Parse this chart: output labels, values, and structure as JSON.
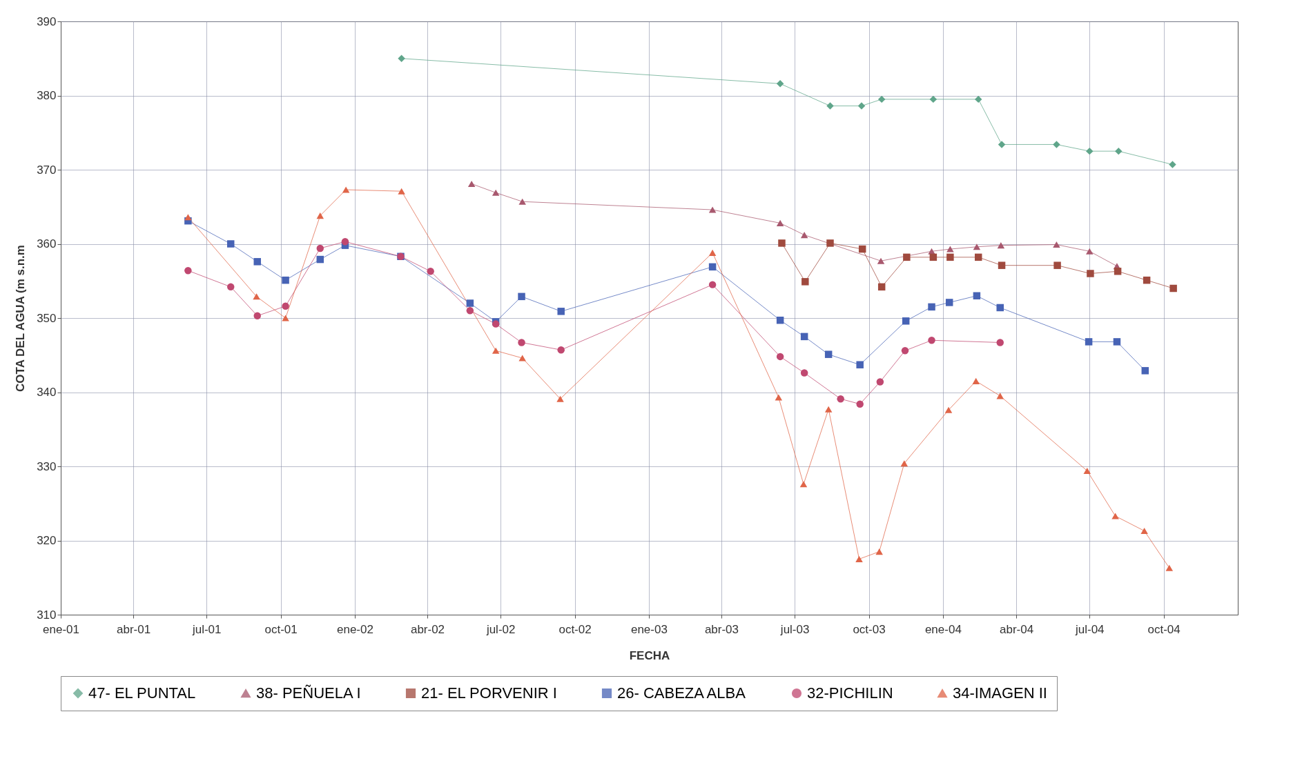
{
  "chart_data": {
    "type": "line",
    "xlabel": "FECHA",
    "ylabel": "COTA DEL AGUA (m s.n.m",
    "xlim": [
      "2001-01-01",
      "2005-01-01"
    ],
    "ylim": [
      310,
      390
    ],
    "yticks": [
      310,
      320,
      330,
      340,
      350,
      360,
      370,
      380,
      390
    ],
    "xticks": [
      {
        "value": "2001-01-01",
        "label": "ene-01"
      },
      {
        "value": "2001-04-01",
        "label": "abr-01"
      },
      {
        "value": "2001-07-01",
        "label": "jul-01"
      },
      {
        "value": "2001-10-01",
        "label": "oct-01"
      },
      {
        "value": "2002-01-01",
        "label": "ene-02"
      },
      {
        "value": "2002-04-01",
        "label": "abr-02"
      },
      {
        "value": "2002-07-01",
        "label": "jul-02"
      },
      {
        "value": "2002-10-01",
        "label": "oct-02"
      },
      {
        "value": "2003-01-01",
        "label": "ene-03"
      },
      {
        "value": "2003-04-01",
        "label": "abr-03"
      },
      {
        "value": "2003-07-01",
        "label": "jul-03"
      },
      {
        "value": "2003-10-01",
        "label": "oct-03"
      },
      {
        "value": "2004-01-01",
        "label": "ene-04"
      },
      {
        "value": "2004-04-01",
        "label": "abr-04"
      },
      {
        "value": "2004-07-01",
        "label": "jul-04"
      },
      {
        "value": "2004-10-01",
        "label": "oct-04"
      }
    ],
    "grid": true,
    "legend": "bottom",
    "line_style": "solid",
    "series": [
      {
        "name": "47- EL PUNTAL",
        "color": "#5fa58a",
        "marker": "diamond",
        "x": [
          "2002-02-28",
          "2003-06-13",
          "2003-08-14",
          "2003-09-22",
          "2003-10-17",
          "2003-12-20",
          "2004-02-14",
          "2004-03-14",
          "2004-05-21",
          "2004-07-01",
          "2004-08-06",
          "2004-10-12"
        ],
        "values": [
          385.0,
          381.6,
          378.6,
          378.6,
          379.5,
          379.5,
          379.5,
          373.4,
          373.4,
          372.5,
          372.5,
          370.7
        ]
      },
      {
        "name": "38- PEÑUELA I",
        "color": "#a8586e",
        "marker": "triangle",
        "x": [
          "2002-05-26",
          "2002-06-25",
          "2002-07-28",
          "2003-03-21",
          "2003-06-13",
          "2003-07-13",
          "2003-10-16",
          "2003-12-18",
          "2004-01-10",
          "2004-02-12",
          "2004-03-13",
          "2004-05-21",
          "2004-07-01",
          "2004-08-04"
        ],
        "values": [
          368.1,
          366.9,
          365.7,
          364.6,
          362.8,
          361.2,
          357.7,
          359.0,
          359.3,
          359.6,
          359.8,
          359.9,
          359.0,
          357.0
        ]
      },
      {
        "name": "21- EL PORVENIR I",
        "color": "#a04a3e",
        "marker": "square",
        "x": [
          "2003-06-15",
          "2003-07-14",
          "2003-08-14",
          "2003-09-23",
          "2003-10-17",
          "2003-11-17",
          "2003-12-20",
          "2004-01-10",
          "2004-02-14",
          "2004-03-14",
          "2004-05-22",
          "2004-07-02",
          "2004-08-05",
          "2004-09-10",
          "2004-10-13"
        ],
        "values": [
          360.1,
          354.9,
          360.1,
          359.3,
          354.2,
          358.2,
          358.2,
          358.2,
          358.2,
          357.1,
          357.1,
          356.0,
          356.3,
          355.1,
          354.0
        ]
      },
      {
        "name": "26- CABEZA ALBA",
        "color": "#4763b5",
        "marker": "square",
        "x": [
          "2001-06-08",
          "2001-07-31",
          "2001-09-02",
          "2001-10-07",
          "2001-11-19",
          "2001-12-20",
          "2002-02-27",
          "2002-05-24",
          "2002-06-25",
          "2002-07-27",
          "2002-09-14",
          "2003-03-21",
          "2003-06-13",
          "2003-07-13",
          "2003-08-12",
          "2003-09-20",
          "2003-11-16",
          "2003-12-18",
          "2004-01-09",
          "2004-02-12",
          "2004-03-12",
          "2004-06-30",
          "2004-08-04",
          "2004-09-08"
        ],
        "values": [
          363.1,
          360.0,
          357.6,
          355.1,
          357.9,
          359.8,
          358.3,
          352.0,
          349.5,
          352.9,
          350.9,
          356.9,
          349.7,
          347.5,
          345.1,
          343.7,
          349.6,
          351.5,
          352.1,
          353.0,
          351.4,
          346.8,
          346.8,
          342.9
        ]
      },
      {
        "name": "32-PICHILIN",
        "color": "#c04870",
        "marker": "circle",
        "x": [
          "2001-06-08",
          "2001-07-31",
          "2001-09-02",
          "2001-10-07",
          "2001-11-19",
          "2001-12-20",
          "2002-02-27",
          "2002-04-05",
          "2002-05-24",
          "2002-06-25",
          "2002-07-27",
          "2002-09-14",
          "2003-03-21",
          "2003-06-13",
          "2003-07-13",
          "2003-08-27",
          "2003-09-20",
          "2003-10-15",
          "2003-11-15",
          "2003-12-18",
          "2004-03-12"
        ],
        "values": [
          356.4,
          354.2,
          350.3,
          351.6,
          359.4,
          360.3,
          358.3,
          356.3,
          351.0,
          349.2,
          346.7,
          345.7,
          354.5,
          344.8,
          342.6,
          339.1,
          338.4,
          341.4,
          345.6,
          347.0,
          346.7
        ]
      },
      {
        "name": "34-IMAGEN II",
        "color": "#e06548",
        "marker": "triangle",
        "x": [
          "2001-06-08",
          "2001-09-01",
          "2001-10-07",
          "2001-11-19",
          "2001-12-21",
          "2002-02-28",
          "2002-06-25",
          "2002-07-28",
          "2002-09-13",
          "2003-03-21",
          "2003-06-11",
          "2003-07-12",
          "2003-08-12",
          "2003-09-19",
          "2003-10-14",
          "2003-11-14",
          "2004-01-08",
          "2004-02-11",
          "2004-03-12",
          "2004-06-28",
          "2004-08-02",
          "2004-09-07",
          "2004-10-08"
        ],
        "values": [
          363.6,
          352.9,
          350.0,
          363.8,
          367.3,
          367.1,
          345.6,
          344.6,
          339.1,
          358.8,
          339.3,
          327.6,
          337.7,
          317.5,
          318.5,
          330.4,
          337.6,
          341.5,
          339.5,
          329.4,
          323.3,
          321.3,
          316.3
        ]
      }
    ]
  }
}
